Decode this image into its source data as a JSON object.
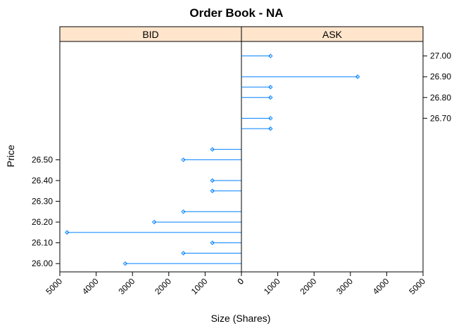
{
  "chart_data": {
    "type": "lollipop",
    "title": "Order Book - NA",
    "xlabel": "Size (Shares)",
    "ylabel": "Price",
    "panels": [
      {
        "name": "BID",
        "xlim": [
          5000,
          0
        ],
        "x_ticks": [
          5000,
          4000,
          3000,
          2000,
          1000,
          0
        ],
        "y_ticks": [
          26.0,
          26.1,
          26.2,
          26.3,
          26.4,
          26.5
        ],
        "points": [
          {
            "price": 26.55,
            "size": 800
          },
          {
            "price": 26.5,
            "size": 1600
          },
          {
            "price": 26.4,
            "size": 800
          },
          {
            "price": 26.35,
            "size": 800
          },
          {
            "price": 26.25,
            "size": 1600
          },
          {
            "price": 26.2,
            "size": 2400
          },
          {
            "price": 26.15,
            "size": 4800
          },
          {
            "price": 26.1,
            "size": 800
          },
          {
            "price": 26.05,
            "size": 1600
          },
          {
            "price": 26.0,
            "size": 3200
          }
        ]
      },
      {
        "name": "ASK",
        "xlim": [
          0,
          5000
        ],
        "x_ticks": [
          0,
          1000,
          2000,
          3000,
          4000,
          5000
        ],
        "y_ticks": [
          26.7,
          26.8,
          26.9,
          27.0
        ],
        "points": [
          {
            "price": 27.0,
            "size": 800
          },
          {
            "price": 26.9,
            "size": 3200
          },
          {
            "price": 26.85,
            "size": 800
          },
          {
            "price": 26.8,
            "size": 800
          },
          {
            "price": 26.7,
            "size": 800
          },
          {
            "price": 26.65,
            "size": 800
          }
        ]
      }
    ],
    "ylim": [
      25.96,
      27.07
    ],
    "colors": {
      "strip": "#ffe5cc",
      "series": "#0080ff"
    }
  }
}
